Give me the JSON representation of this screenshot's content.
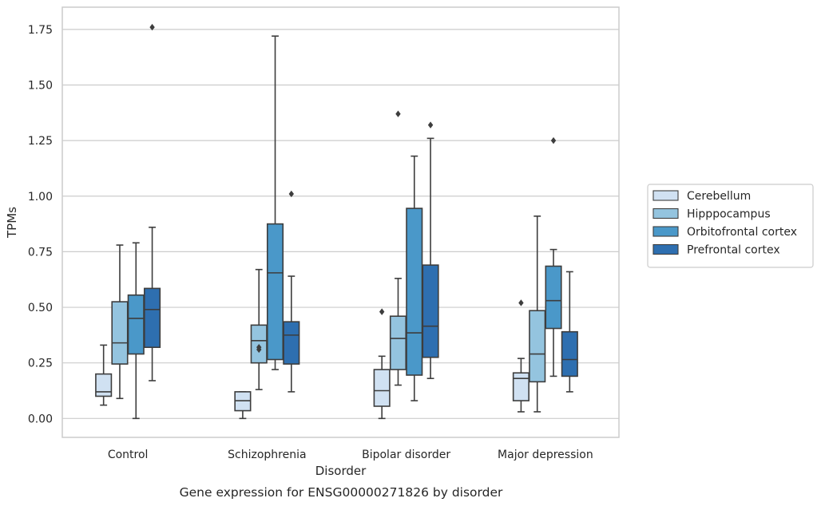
{
  "chart_data": {
    "type": "boxplot",
    "title": "Gene expression for ENSG00000271826 by disorder",
    "xlabel": "Disorder",
    "ylabel": "TPMs",
    "ylim": [
      -0.085,
      1.85
    ],
    "yticks": [
      "0.00",
      "0.25",
      "0.50",
      "0.75",
      "1.00",
      "1.25",
      "1.50",
      "1.75"
    ],
    "grid": true,
    "legend_position": "right",
    "categories": [
      "Control",
      "Schizophrenia",
      "Bipolar disorder",
      "Major depression"
    ],
    "series": [
      {
        "name": "Cerebellum",
        "color": "#d0e1f2",
        "boxes": [
          {
            "whislo": 0.06,
            "q1": 0.1,
            "med": 0.12,
            "q3": 0.2,
            "whishi": 0.33,
            "fliers": []
          },
          {
            "whislo": 0.0,
            "q1": 0.035,
            "med": 0.08,
            "q3": 0.12,
            "whishi": 0.12,
            "fliers": []
          },
          {
            "whislo": 0.0,
            "q1": 0.055,
            "med": 0.125,
            "q3": 0.22,
            "whishi": 0.28,
            "fliers": [
              0.48
            ]
          },
          {
            "whislo": 0.03,
            "q1": 0.08,
            "med": 0.18,
            "q3": 0.205,
            "whishi": 0.27,
            "fliers": [
              0.52
            ]
          }
        ]
      },
      {
        "name": "Hipppocampus",
        "color": "#94c4df",
        "boxes": [
          {
            "whislo": 0.09,
            "q1": 0.245,
            "med": 0.34,
            "q3": 0.525,
            "whishi": 0.78,
            "fliers": []
          },
          {
            "whislo": 0.13,
            "q1": 0.25,
            "med": 0.35,
            "q3": 0.42,
            "whishi": 0.67,
            "fliers": [
              0.31,
              0.32
            ]
          },
          {
            "whislo": 0.15,
            "q1": 0.22,
            "med": 0.36,
            "q3": 0.46,
            "whishi": 0.63,
            "fliers": [
              1.37
            ]
          },
          {
            "whislo": 0.03,
            "q1": 0.165,
            "med": 0.29,
            "q3": 0.485,
            "whishi": 0.91,
            "fliers": []
          }
        ]
      },
      {
        "name": "Orbitofrontal cortex",
        "color": "#4a98c9",
        "boxes": [
          {
            "whislo": 0.0,
            "q1": 0.29,
            "med": 0.45,
            "q3": 0.555,
            "whishi": 0.79,
            "fliers": []
          },
          {
            "whislo": 0.22,
            "q1": 0.265,
            "med": 0.655,
            "q3": 0.875,
            "whishi": 1.72,
            "fliers": []
          },
          {
            "whislo": 0.08,
            "q1": 0.195,
            "med": 0.385,
            "q3": 0.945,
            "whishi": 1.18,
            "fliers": []
          },
          {
            "whislo": 0.19,
            "q1": 0.405,
            "med": 0.53,
            "q3": 0.685,
            "whishi": 0.76,
            "fliers": [
              1.25
            ]
          }
        ]
      },
      {
        "name": "Prefrontal cortex",
        "color": "#2e6fb0",
        "boxes": [
          {
            "whislo": 0.17,
            "q1": 0.32,
            "med": 0.49,
            "q3": 0.585,
            "whishi": 0.86,
            "fliers": [
              1.76
            ]
          },
          {
            "whislo": 0.12,
            "q1": 0.245,
            "med": 0.375,
            "q3": 0.435,
            "whishi": 0.64,
            "fliers": [
              1.01
            ]
          },
          {
            "whislo": 0.18,
            "q1": 0.275,
            "med": 0.415,
            "q3": 0.69,
            "whishi": 1.26,
            "fliers": [
              1.32
            ]
          },
          {
            "whislo": 0.12,
            "q1": 0.19,
            "med": 0.265,
            "q3": 0.39,
            "whishi": 0.66,
            "fliers": []
          }
        ]
      }
    ]
  }
}
